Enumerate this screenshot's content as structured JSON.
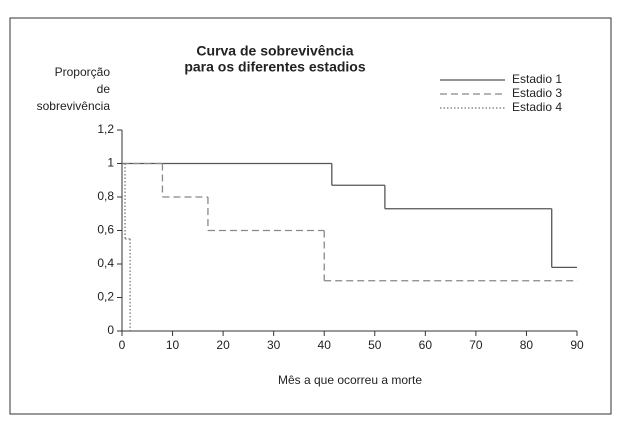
{
  "chart_data": {
    "type": "step",
    "title": [
      "Curva de sobrevivência",
      "para os diferentes estadios"
    ],
    "ylabel": [
      "Proporção",
      "de",
      "sobrevivência"
    ],
    "xlabel": "Mês a que ocorreu a morte",
    "xlim": [
      0,
      90
    ],
    "xticks": [
      0,
      10,
      20,
      30,
      40,
      50,
      60,
      70,
      80,
      90
    ],
    "ylim": [
      0,
      1.2
    ],
    "yticks": [
      0,
      {
        "value": 0.2,
        "label": "0,2"
      },
      {
        "value": 0.4,
        "label": "0,4"
      },
      {
        "value": 0.6,
        "label": "0,6"
      },
      {
        "value": 0.8,
        "label": "0,8"
      },
      1,
      {
        "value": 1.2,
        "label": "1,2"
      }
    ],
    "series": [
      {
        "name": "Estadio 1",
        "color": "#555555",
        "dash": "solid",
        "x": [
          0,
          41.5,
          52,
          85,
          90
        ],
        "values": [
          1,
          0.87,
          0.73,
          0.38,
          0.38
        ]
      },
      {
        "name": "Estadio 3",
        "color": "#888888",
        "dash": "dashed",
        "x": [
          0,
          8,
          17,
          40,
          90
        ],
        "values": [
          1,
          0.8,
          0.6,
          0.3,
          0.3
        ]
      },
      {
        "name": "Estadio 4",
        "color": "#777777",
        "dash": "dotted",
        "x": [
          0,
          0.6,
          1.6
        ],
        "values": [
          1,
          0.55,
          0
        ]
      }
    ]
  }
}
